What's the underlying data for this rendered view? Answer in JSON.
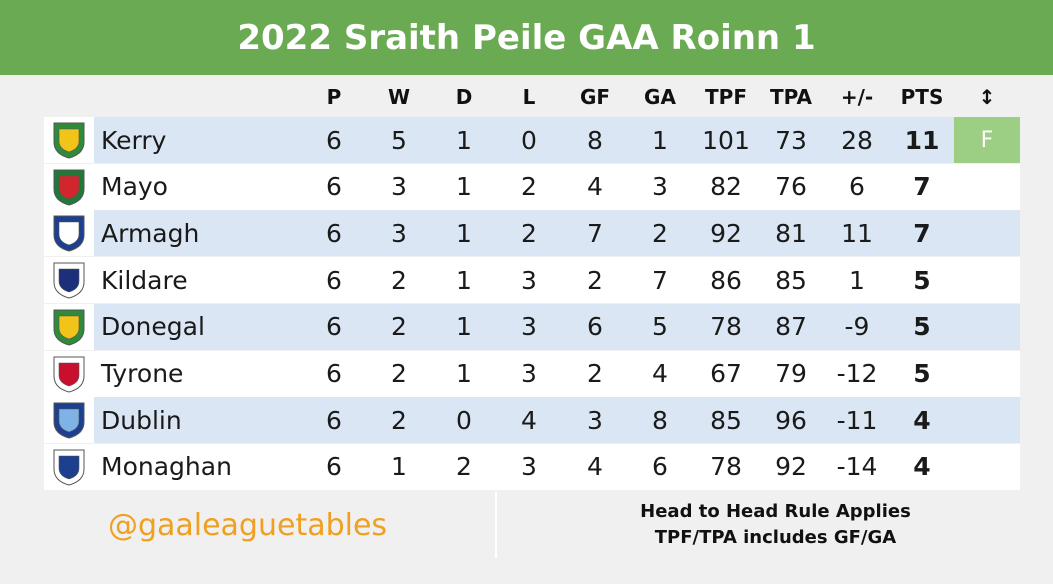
{
  "title": "2022 Sraith Peile GAA Roinn 1",
  "columns": [
    "P",
    "W",
    "D",
    "L",
    "GF",
    "GA",
    "TPF",
    "TPA",
    "+/-",
    "PTS",
    "↕"
  ],
  "rows": [
    {
      "team": "Kerry",
      "crest": "kerry-crest-icon",
      "crest_colors": [
        "#2e8b3a",
        "#f2c318"
      ],
      "P": "6",
      "W": "5",
      "D": "1",
      "L": "0",
      "GF": "8",
      "GA": "1",
      "TPF": "101",
      "TPA": "73",
      "diff": "28",
      "PTS": "11",
      "marker": "F"
    },
    {
      "team": "Mayo",
      "crest": "mayo-crest-icon",
      "crest_colors": [
        "#1f7a3a",
        "#d1262c"
      ],
      "P": "6",
      "W": "3",
      "D": "1",
      "L": "2",
      "GF": "4",
      "GA": "3",
      "TPF": "82",
      "TPA": "76",
      "diff": "6",
      "PTS": "7",
      "marker": ""
    },
    {
      "team": "Armagh",
      "crest": "armagh-crest-icon",
      "crest_colors": [
        "#1d3f8f",
        "#ffffff"
      ],
      "P": "6",
      "W": "3",
      "D": "1",
      "L": "2",
      "GF": "7",
      "GA": "2",
      "TPF": "92",
      "TPA": "81",
      "diff": "11",
      "PTS": "7",
      "marker": ""
    },
    {
      "team": "Kildare",
      "crest": "kildare-crest-icon",
      "crest_colors": [
        "#ffffff",
        "#1b2f7a"
      ],
      "P": "6",
      "W": "2",
      "D": "1",
      "L": "3",
      "GF": "2",
      "GA": "7",
      "TPF": "86",
      "TPA": "85",
      "diff": "1",
      "PTS": "5",
      "marker": ""
    },
    {
      "team": "Donegal",
      "crest": "donegal-crest-icon",
      "crest_colors": [
        "#2e8b3a",
        "#f2c318"
      ],
      "P": "6",
      "W": "2",
      "D": "1",
      "L": "3",
      "GF": "6",
      "GA": "5",
      "TPF": "78",
      "TPA": "87",
      "diff": "-9",
      "PTS": "5",
      "marker": ""
    },
    {
      "team": "Tyrone",
      "crest": "tyrone-crest-icon",
      "crest_colors": [
        "#ffffff",
        "#c8102e"
      ],
      "P": "6",
      "W": "2",
      "D": "1",
      "L": "3",
      "GF": "2",
      "GA": "4",
      "TPF": "67",
      "TPA": "79",
      "diff": "-12",
      "PTS": "5",
      "marker": ""
    },
    {
      "team": "Dublin",
      "crest": "dublin-crest-icon",
      "crest_colors": [
        "#1d3f8f",
        "#7fb2e5"
      ],
      "P": "6",
      "W": "2",
      "D": "0",
      "L": "4",
      "GF": "3",
      "GA": "8",
      "TPF": "85",
      "TPA": "96",
      "diff": "-11",
      "PTS": "4",
      "marker": ""
    },
    {
      "team": "Monaghan",
      "crest": "monaghan-crest-icon",
      "crest_colors": [
        "#ffffff",
        "#1d3f8f"
      ],
      "P": "6",
      "W": "1",
      "D": "2",
      "L": "3",
      "GF": "4",
      "GA": "6",
      "TPF": "78",
      "TPA": "92",
      "diff": "-14",
      "PTS": "4",
      "marker": ""
    }
  ],
  "footer": {
    "handle": "@gaaleaguetables",
    "note_line1": "Head to Head Rule Applies",
    "note_line2": "TPF/TPA includes GF/GA"
  },
  "colors": {
    "title_bar": "#6aaa52",
    "row_shade": "#dbe6f4",
    "marker_bg": "#9ccf83",
    "handle_text": "#f0a020"
  }
}
